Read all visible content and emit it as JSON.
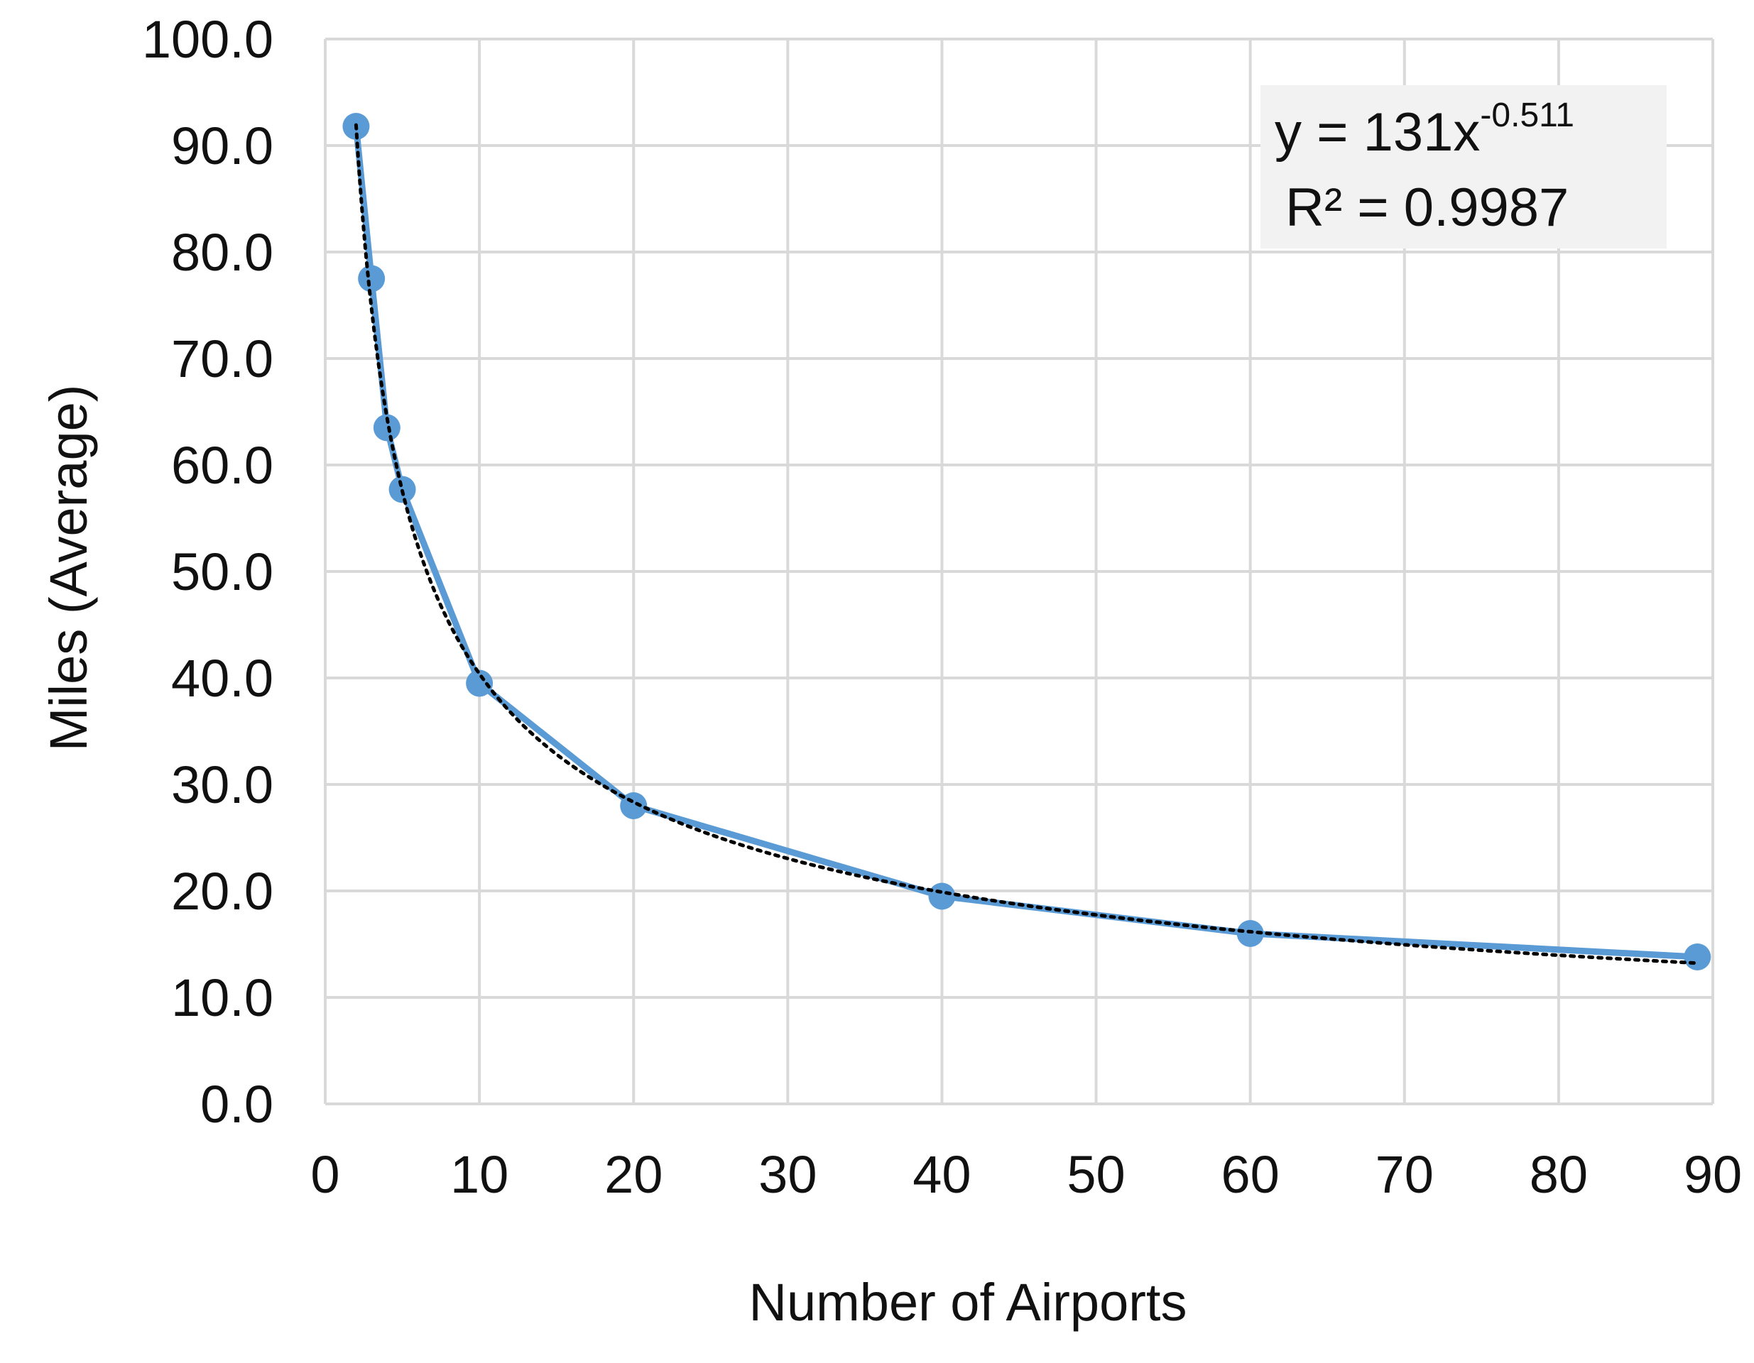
{
  "chart_data": {
    "type": "line",
    "title": "",
    "xlabel": "Number of Airports",
    "ylabel": "Miles (Average)",
    "xlim": [
      0,
      90
    ],
    "ylim": [
      0,
      100
    ],
    "x_ticks": [
      "0",
      "10",
      "20",
      "30",
      "40",
      "50",
      "60",
      "70",
      "80",
      "90"
    ],
    "y_ticks": [
      "0.0",
      "10.0",
      "20.0",
      "30.0",
      "40.0",
      "50.0",
      "60.0",
      "70.0",
      "80.0",
      "90.0",
      "100.0"
    ],
    "grid": true,
    "series": [
      {
        "x": [
          2,
          3,
          4,
          5,
          10,
          20,
          40,
          60,
          89
        ],
        "y": [
          91.8,
          77.5,
          63.5,
          57.7,
          39.5,
          28.0,
          19.5,
          16.0,
          13.8
        ],
        "color": "#5b9bd5",
        "marker": "circle"
      }
    ],
    "trendline": {
      "type": "power",
      "coefficient": 131,
      "exponent": -0.511,
      "color": "#000000",
      "style": "dotted",
      "equation_base": "y = 131x",
      "equation_exponent": "-0.511",
      "r_squared_text": "R² = 0.9987"
    }
  }
}
